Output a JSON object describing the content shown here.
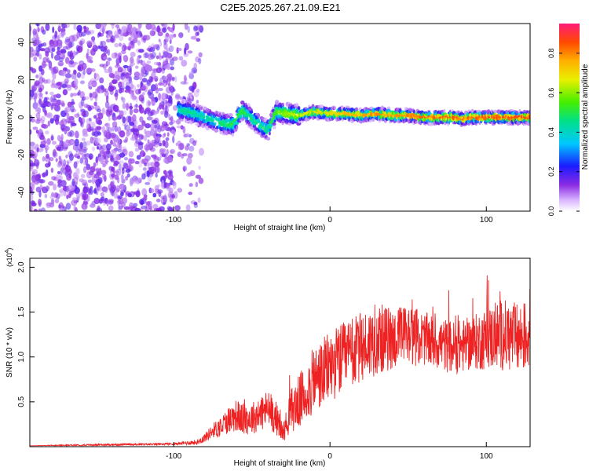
{
  "title": "C2E5.2025.267.21.09.E21",
  "colors": {
    "snr_line": "#ee2222",
    "scatter_background": "#8a3cf0",
    "ridge_core": "#ff3b1f",
    "frame": "#000000"
  },
  "chart_data": [
    {
      "type": "heatmap",
      "title": "C2E5.2025.267.21.09.E21",
      "xlabel": "Height of straight line (km)",
      "ylabel": "Frequency (Hz)",
      "xlim": [
        -192,
        128
      ],
      "ylim": [
        -50,
        50
      ],
      "x_ticks": [
        -100,
        0,
        100
      ],
      "y_ticks": [
        -40,
        -20,
        0,
        20,
        40
      ],
      "colorbar": {
        "label": "Normalized spectral amplitude",
        "range": [
          0.0,
          0.95
        ],
        "ticks": [
          "0.0",
          "0.2",
          "0.4",
          "0.6",
          "0.8"
        ],
        "tick_values": [
          0.0,
          0.2,
          0.4,
          0.6,
          0.8
        ]
      },
      "noise_region_x": [
        -192,
        -82
      ],
      "noise_amplitude": 0.12,
      "ridge": {
        "x": [
          -97,
          -90,
          -80,
          -70,
          -62,
          -56,
          -48,
          -40,
          -34,
          -28,
          -20,
          -10,
          0,
          10,
          20,
          30,
          40,
          50,
          60,
          70,
          80,
          85,
          90,
          100,
          110,
          120,
          128
        ],
        "freq": [
          4,
          3,
          0,
          -3,
          -4,
          4,
          -2,
          -7,
          3,
          2,
          1,
          3,
          2,
          2,
          1,
          2,
          1,
          1,
          0,
          0,
          0,
          -1,
          0,
          0,
          0,
          0,
          0
        ],
        "amplitude": [
          0.45,
          0.5,
          0.45,
          0.5,
          0.55,
          0.55,
          0.5,
          0.5,
          0.6,
          0.65,
          0.7,
          0.75,
          0.75,
          0.8,
          0.82,
          0.85,
          0.85,
          0.85,
          0.9,
          0.9,
          0.9,
          0.9,
          0.9,
          0.92,
          0.92,
          0.92,
          0.92
        ]
      }
    },
    {
      "type": "line",
      "xlabel": "Height of straight line (km)",
      "ylabel": "SNR (10 * v/v)",
      "y_multiplier": "(x10",
      "y_multiplier_exp": "4",
      "y_multiplier_close": ")",
      "xlim": [
        -192,
        128
      ],
      "ylim": [
        0,
        2.1
      ],
      "x_ticks": [
        -100,
        0,
        100
      ],
      "y_ticks": [
        0.5,
        1.0,
        1.5,
        2.0
      ],
      "y_tick_labels": [
        "0.5",
        "1.0",
        "1.5",
        "2.0"
      ],
      "series": [
        {
          "name": "SNR",
          "x": [
            -192,
            -150,
            -100,
            -85,
            -80,
            -75,
            -70,
            -65,
            -60,
            -55,
            -50,
            -45,
            -40,
            -35,
            -30,
            -25,
            -20,
            -15,
            -10,
            -5,
            0,
            10,
            20,
            30,
            40,
            50,
            60,
            70,
            80,
            90,
            100,
            110,
            120,
            128
          ],
          "y": [
            0.01,
            0.02,
            0.03,
            0.05,
            0.1,
            0.18,
            0.22,
            0.3,
            0.35,
            0.3,
            0.32,
            0.36,
            0.42,
            0.34,
            0.15,
            0.4,
            0.5,
            0.6,
            0.75,
            0.8,
            0.9,
            1.0,
            1.1,
            1.2,
            1.2,
            1.25,
            1.2,
            1.15,
            1.1,
            1.15,
            1.2,
            1.25,
            1.2,
            1.25
          ],
          "noise": [
            0.0,
            0.01,
            0.01,
            0.03,
            0.05,
            0.08,
            0.12,
            0.15,
            0.18,
            0.18,
            0.18,
            0.2,
            0.22,
            0.2,
            0.1,
            0.25,
            0.3,
            0.35,
            0.38,
            0.4,
            0.4,
            0.4,
            0.4,
            0.4,
            0.35,
            0.35,
            0.3,
            0.3,
            0.3,
            0.3,
            0.35,
            0.4,
            0.4,
            0.4
          ]
        }
      ]
    }
  ]
}
